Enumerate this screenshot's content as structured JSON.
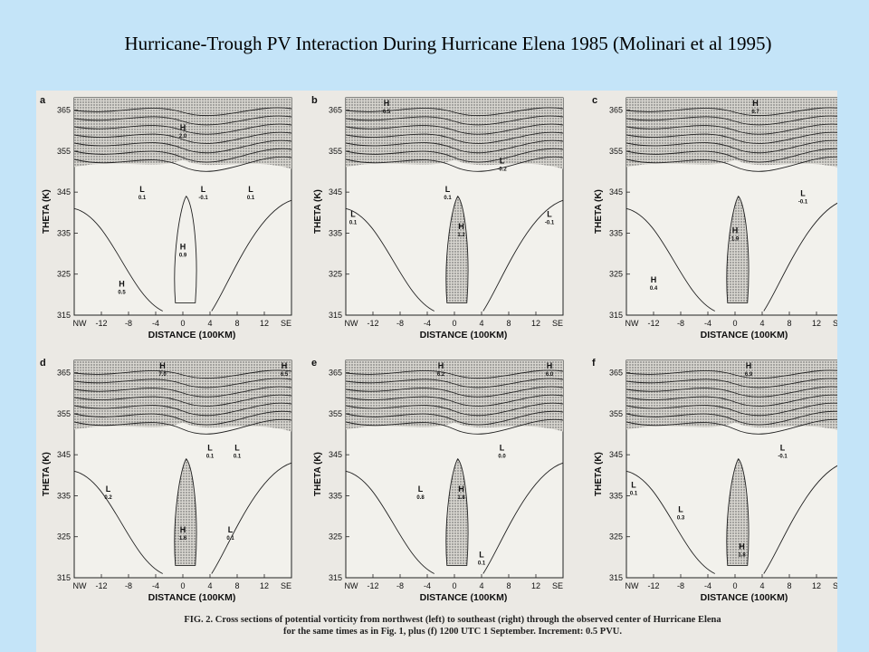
{
  "title": "Hurricane-Trough PV Interaction During Hurricane Elena 1985 (Molinari et al 1995)",
  "figure": {
    "caption_fig": "FIG. 2.",
    "caption_text": " Cross sections of potential vorticity from northwest (left) to southeast (right) through the observed center of Hurricane Elena",
    "caption_line2": "for the same times as in Fig. 1, plus (f) 1200 UTC 1 September. Increment: 0.5 PVU."
  },
  "axes": {
    "ylabel": "THETA (K)",
    "xlabel": "DISTANCE (100KM)",
    "yticks": [
      "365",
      "355",
      "345",
      "335",
      "325",
      "315"
    ],
    "xticks": [
      "NW",
      "-12",
      "-8",
      "-4",
      "0",
      "4",
      "8",
      "12",
      "SE"
    ]
  },
  "panels": [
    {
      "letter": "a",
      "labels": [
        {
          "t": "H",
          "v": "2.0",
          "x": 0,
          "y": 360
        },
        {
          "t": "L",
          "v": "0.1",
          "x": -6,
          "y": 345
        },
        {
          "t": "L",
          "v": "-0.1",
          "x": 3,
          "y": 345
        },
        {
          "t": "L",
          "v": "0.1",
          "x": 10,
          "y": 345
        },
        {
          "t": "H",
          "v": "0.9",
          "x": 0,
          "y": 331
        },
        {
          "t": "H",
          "v": "0.5",
          "x": -9,
          "y": 322
        }
      ]
    },
    {
      "letter": "b",
      "labels": [
        {
          "t": "H",
          "v": "6.5",
          "x": -10,
          "y": 366
        },
        {
          "t": "L",
          "v": "-0.2",
          "x": 7,
          "y": 352
        },
        {
          "t": "L",
          "v": "0.1",
          "x": -16,
          "y": 339
        },
        {
          "t": "L",
          "v": "0.1",
          "x": -1,
          "y": 345
        },
        {
          "t": "H",
          "v": "1.2",
          "x": 1,
          "y": 336
        },
        {
          "t": "L",
          "v": "-0.1",
          "x": 14,
          "y": 339
        }
      ]
    },
    {
      "letter": "c",
      "labels": [
        {
          "t": "H",
          "v": "6.7",
          "x": 3,
          "y": 366
        },
        {
          "t": "L",
          "v": "-0.1",
          "x": 10,
          "y": 344
        },
        {
          "t": "H",
          "v": "1.9",
          "x": 0,
          "y": 335
        },
        {
          "t": "H",
          "v": "0.4",
          "x": -12,
          "y": 323
        }
      ]
    },
    {
      "letter": "d",
      "labels": [
        {
          "t": "H",
          "v": "7.0",
          "x": -3,
          "y": 366
        },
        {
          "t": "H",
          "v": "6.5",
          "x": 17,
          "y": 366
        },
        {
          "t": "L",
          "v": "0.1",
          "x": 4,
          "y": 346
        },
        {
          "t": "L",
          "v": "0.1",
          "x": 8,
          "y": 346
        },
        {
          "t": "L",
          "v": "0.2",
          "x": -11,
          "y": 336
        },
        {
          "t": "H",
          "v": "1.6",
          "x": 0,
          "y": 326
        },
        {
          "t": "L",
          "v": "0.1",
          "x": 7,
          "y": 326
        }
      ]
    },
    {
      "letter": "e",
      "labels": [
        {
          "t": "H",
          "v": "6.2",
          "x": -2,
          "y": 366
        },
        {
          "t": "H",
          "v": "6.0",
          "x": 14,
          "y": 366
        },
        {
          "t": "L",
          "v": "0.0",
          "x": 7,
          "y": 346
        },
        {
          "t": "L",
          "v": "0.8",
          "x": -5,
          "y": 336
        },
        {
          "t": "H",
          "v": "1.8",
          "x": 1,
          "y": 336
        },
        {
          "t": "L",
          "v": "0.1",
          "x": 4,
          "y": 320
        }
      ]
    },
    {
      "letter": "f",
      "labels": [
        {
          "t": "H",
          "v": "6.9",
          "x": 2,
          "y": 366
        },
        {
          "t": "L",
          "v": "-0.1",
          "x": 7,
          "y": 346
        },
        {
          "t": "L",
          "v": "0.1",
          "x": -16,
          "y": 337
        },
        {
          "t": "L",
          "v": "0.3",
          "x": -8,
          "y": 331
        },
        {
          "t": "H",
          "v": "1.8",
          "x": 1,
          "y": 322
        }
      ]
    }
  ]
}
